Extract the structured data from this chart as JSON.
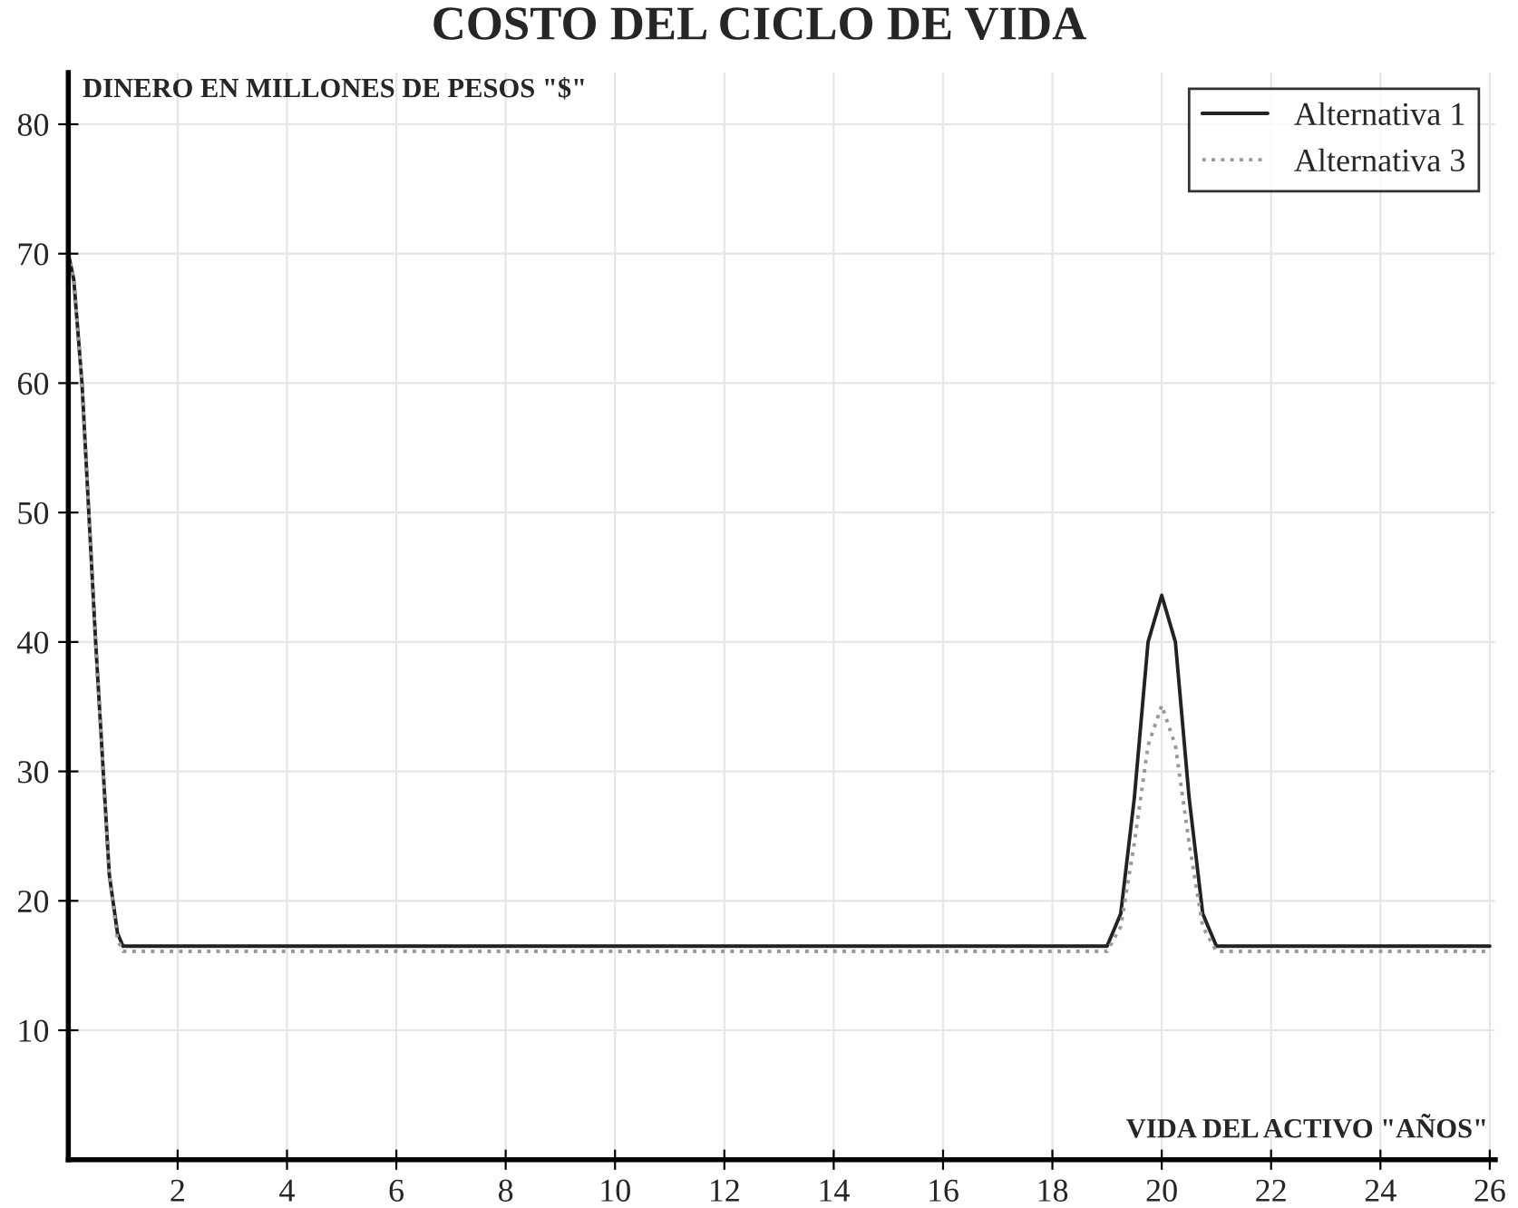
{
  "chart_data": {
    "type": "line",
    "title": "COSTO DEL CICLO DE VIDA",
    "xlabel": "VIDA DEL ACTIVO \"AÑOS\"",
    "ylabel": "DINERO EN MILLONES DE PESOS \"$\"",
    "series": [
      {
        "name": "Alternativa 1",
        "color": "#222222",
        "line_style": "solid",
        "x": [
          0,
          0.1,
          0.25,
          0.5,
          0.75,
          0.9,
          1,
          19,
          19.25,
          19.5,
          19.75,
          20,
          20.25,
          20.5,
          20.75,
          21,
          26
        ],
        "values": [
          70,
          68,
          60,
          40,
          22,
          17.5,
          16.5,
          16.5,
          19,
          28,
          40,
          43.6,
          40,
          28,
          19,
          16.5,
          16.5
        ]
      },
      {
        "name": "Alternativa 3",
        "color": "#999999",
        "line_style": "dotted",
        "x": [
          0,
          0.1,
          0.25,
          0.5,
          0.75,
          0.9,
          1,
          19,
          19.25,
          19.5,
          19.75,
          20,
          20.25,
          20.5,
          20.75,
          21,
          26
        ],
        "values": [
          70,
          68,
          60,
          40,
          22,
          17,
          16.1,
          16.1,
          18,
          24.5,
          32,
          35.1,
          32,
          24.5,
          18,
          16.1,
          16.1
        ]
      }
    ],
    "xlim": [
      0,
      26.1
    ],
    "ylim": [
      0,
      84
    ],
    "xticks": [
      2,
      4,
      6,
      8,
      10,
      12,
      14,
      16,
      18,
      20,
      22,
      24,
      26
    ],
    "yticks": [
      10,
      20,
      30,
      40,
      50,
      60,
      70,
      80
    ],
    "grid": true,
    "legend": "top right"
  }
}
